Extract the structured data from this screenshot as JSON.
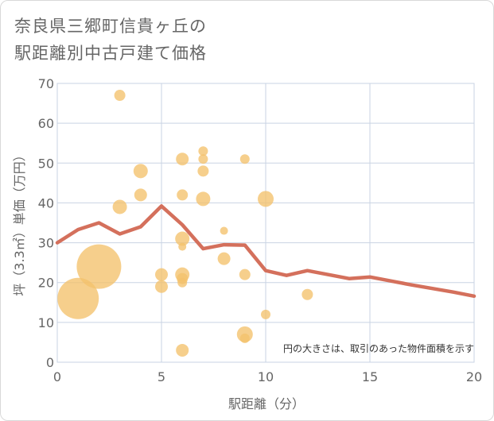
{
  "title_line1": "奈良県三郷町信貴ヶ丘の",
  "title_line2": "駅距離別中古戸建て価格",
  "chart_data": {
    "type": "scatter",
    "xlabel": "駅距離（分）",
    "ylabel": "坪（3.3㎡）単価（万円）",
    "xlim": [
      0,
      20
    ],
    "ylim": [
      0,
      70
    ],
    "xticks": [
      0,
      5,
      10,
      15,
      20
    ],
    "yticks": [
      0,
      10,
      20,
      30,
      40,
      50,
      60,
      70
    ],
    "grid": true,
    "annotation": "円の大きさは、取引のあった物件面積を示す",
    "colors": {
      "bubble": "#f3c16b",
      "line": "#d4705c",
      "grid": "#c9d3e3",
      "text": "#666666"
    },
    "bubbles": [
      {
        "x": 1,
        "y": 16,
        "size": 26
      },
      {
        "x": 2,
        "y": 24,
        "size": 28
      },
      {
        "x": 3,
        "y": 67,
        "size": 7
      },
      {
        "x": 3,
        "y": 39,
        "size": 9
      },
      {
        "x": 4,
        "y": 48,
        "size": 9
      },
      {
        "x": 4,
        "y": 42,
        "size": 8
      },
      {
        "x": 5,
        "y": 22,
        "size": 8
      },
      {
        "x": 5,
        "y": 19,
        "size": 8
      },
      {
        "x": 6,
        "y": 51,
        "size": 8
      },
      {
        "x": 6,
        "y": 42,
        "size": 7
      },
      {
        "x": 6,
        "y": 31,
        "size": 9
      },
      {
        "x": 6,
        "y": 29,
        "size": 5
      },
      {
        "x": 6,
        "y": 22,
        "size": 9
      },
      {
        "x": 6,
        "y": 21,
        "size": 7
      },
      {
        "x": 6,
        "y": 20,
        "size": 6
      },
      {
        "x": 6,
        "y": 3,
        "size": 8
      },
      {
        "x": 7,
        "y": 53,
        "size": 6
      },
      {
        "x": 7,
        "y": 51,
        "size": 6
      },
      {
        "x": 7,
        "y": 48,
        "size": 7
      },
      {
        "x": 7,
        "y": 41,
        "size": 9
      },
      {
        "x": 8,
        "y": 33,
        "size": 5
      },
      {
        "x": 8,
        "y": 26,
        "size": 8
      },
      {
        "x": 9,
        "y": 51,
        "size": 6
      },
      {
        "x": 9,
        "y": 22,
        "size": 7
      },
      {
        "x": 9,
        "y": 7,
        "size": 10
      },
      {
        "x": 9,
        "y": 6,
        "size": 6
      },
      {
        "x": 10,
        "y": 41,
        "size": 10
      },
      {
        "x": 10,
        "y": 12,
        "size": 6
      },
      {
        "x": 12,
        "y": 17,
        "size": 7
      }
    ],
    "line": {
      "x": [
        0,
        1,
        2,
        3,
        4,
        5,
        6,
        7,
        8,
        9,
        10,
        11,
        12,
        13,
        14,
        15,
        16,
        17,
        18,
        19,
        20
      ],
      "y": [
        30,
        33.3,
        35,
        32.2,
        34,
        39.2,
        34.5,
        28.5,
        29.5,
        29.4,
        23,
        21.8,
        23,
        22,
        21,
        21.4,
        20.4,
        19.4,
        18.5,
        17.6,
        16.6
      ]
    }
  }
}
